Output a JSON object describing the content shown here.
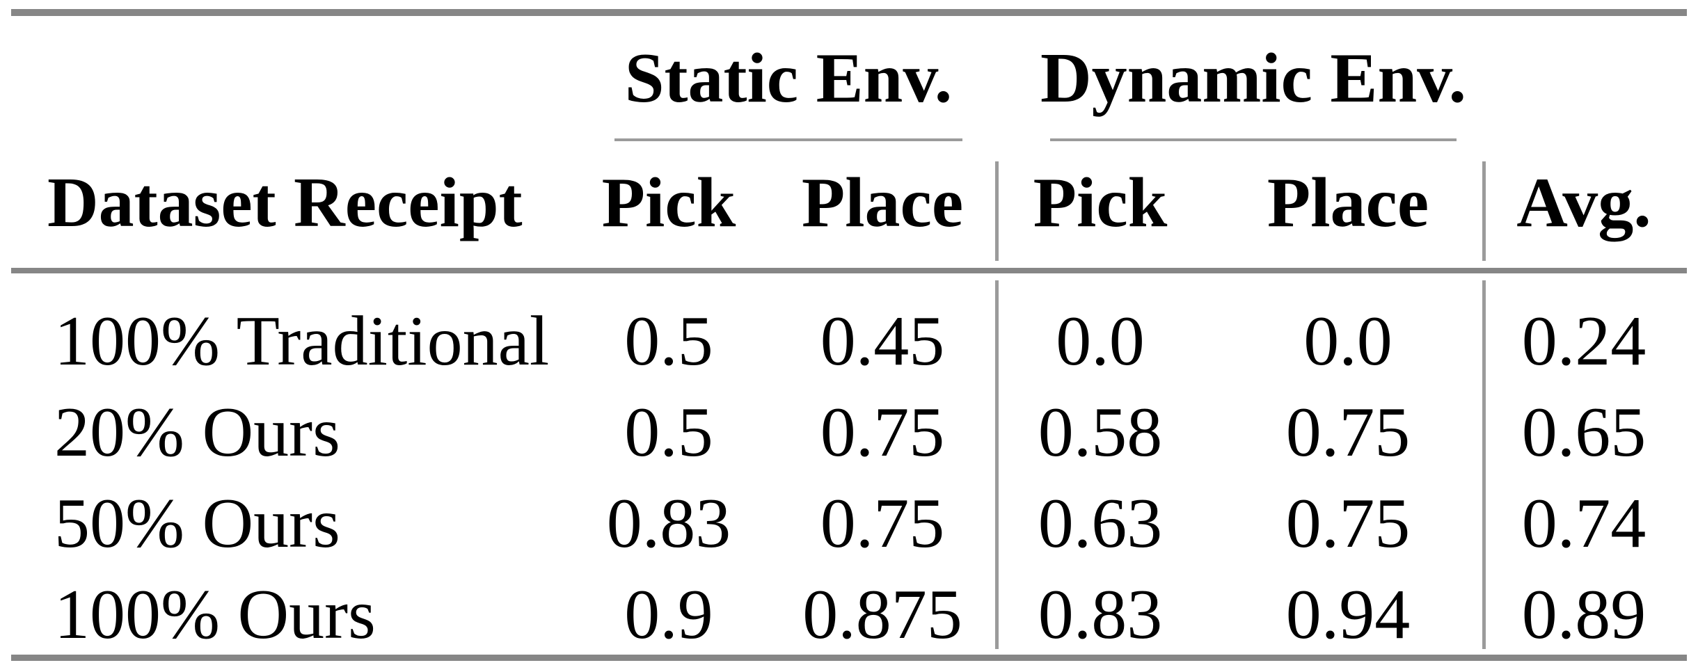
{
  "page": {
    "background": "#ffffff",
    "text_color": "#000000",
    "heavy_rule_color": "#868686",
    "light_rule_color": "#9b9b9b"
  },
  "table": {
    "group_headers": [
      {
        "label": "Static Env."
      },
      {
        "label": "Dynamic Env."
      }
    ],
    "header": {
      "dataset": "Dataset Receipt",
      "static_pick": "Pick",
      "static_place": "Place",
      "dynamic_pick": "Pick",
      "dynamic_place": "Place",
      "avg": "Avg."
    },
    "rows": [
      {
        "label": "100% Traditional",
        "static_pick": "0.5",
        "static_place": "0.45",
        "dynamic_pick": "0.0",
        "dynamic_place": "0.0",
        "avg": "0.24"
      },
      {
        "label": "20% Ours",
        "static_pick": "0.5",
        "static_place": "0.75",
        "dynamic_pick": "0.58",
        "dynamic_place": "0.75",
        "avg": "0.65"
      },
      {
        "label": "50% Ours",
        "static_pick": "0.83",
        "static_place": "0.75",
        "dynamic_pick": "0.63",
        "dynamic_place": "0.75",
        "avg": "0.74"
      },
      {
        "label": "100% Ours",
        "static_pick": "0.9",
        "static_place": "0.875",
        "dynamic_pick": "0.83",
        "dynamic_place": "0.94",
        "avg": "0.89"
      }
    ]
  },
  "chart_data": {
    "type": "table",
    "columns": [
      "Dataset Receipt",
      "Static Env. Pick",
      "Static Env. Place",
      "Dynamic Env. Pick",
      "Dynamic Env. Place",
      "Avg."
    ],
    "rows": [
      [
        "100% Traditional",
        0.5,
        0.45,
        0.0,
        0.0,
        0.24
      ],
      [
        "20% Ours",
        0.5,
        0.75,
        0.58,
        0.75,
        0.65
      ],
      [
        "50% Ours",
        0.83,
        0.75,
        0.63,
        0.75,
        0.74
      ],
      [
        "100% Ours",
        0.9,
        0.875,
        0.83,
        0.94,
        0.89
      ]
    ]
  }
}
